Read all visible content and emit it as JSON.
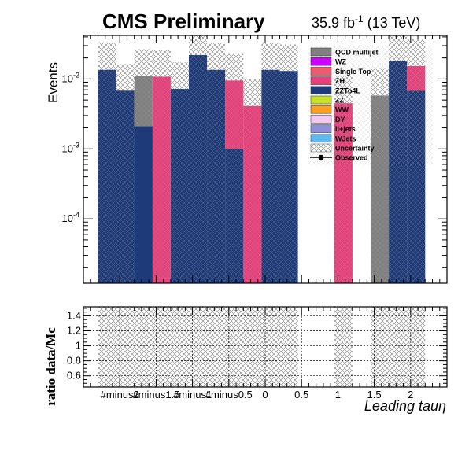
{
  "header": {
    "title": "CMS Preliminary",
    "lumi_value": "35.9 fb",
    "lumi_exp": "-1",
    "lumi_energy": " (13 TeV)"
  },
  "chart_data": [
    {
      "type": "bar",
      "stacked": true,
      "ylabel": "Events",
      "yscale": "log",
      "ylim": [
        1.2e-05,
        0.042
      ],
      "y_tick_labels": [
        {
          "base": "10",
          "exp": "-2",
          "value": 0.01
        },
        {
          "base": "10",
          "exp": "-3",
          "value": 0.001
        },
        {
          "base": "10",
          "exp": "-4",
          "value": 0.0001
        }
      ],
      "x_bin_edges": [
        -2.3,
        -2.05,
        -1.8,
        -1.55,
        -1.3,
        -1.05,
        -0.8,
        -0.55,
        -0.3,
        -0.05,
        0.2,
        0.45,
        0.7,
        0.95,
        1.2,
        1.45,
        1.7,
        1.95,
        2.2
      ],
      "colors": {
        "QCD multijet": "#808080",
        "WZ": "#cc00ff",
        "Single Top": "#f05a6e",
        "ZH": "#e8407a",
        "ZZTo4L": "#1e3a78",
        "ZZ": "#c8e02a",
        "WW": "#ffa020",
        "DY": "#f4c8f0",
        "ll+jets": "#9090d8",
        "WJets": "#60b8f0",
        "Uncertainty": "#606060",
        "Observed": "#000000"
      },
      "series": [
        {
          "name": "ZZTo4L",
          "values": [
            0.0135,
            0.0068,
            0.0021,
            0.0,
            0.0072,
            0.022,
            0.0135,
            0.001,
            0.0,
            0.0135,
            0.013,
            0.0,
            0.0,
            0.0,
            0.0,
            0.0,
            0.018,
            0.0068
          ]
        },
        {
          "name": "ZH",
          "values": [
            0.0,
            0.0,
            0.0,
            0.0108,
            0.0,
            0.0,
            0.0,
            0.0085,
            0.0041,
            0.0,
            0.0,
            0.0,
            0.0,
            0.0045,
            0.0,
            0.0,
            0.0,
            0.0085
          ]
        },
        {
          "name": "QCD multijet",
          "values": [
            0.0,
            0.0,
            0.009,
            0.0,
            0.0,
            0.0,
            0.0,
            0.0,
            0.0,
            0.0,
            0.0,
            0.0,
            0.0,
            0.0,
            0.0,
            0.0058,
            0.0,
            0.0
          ]
        },
        {
          "name": "WZ",
          "values": [
            0,
            0,
            0,
            0,
            0,
            0,
            0,
            0,
            0,
            0,
            0,
            0,
            0,
            0,
            0,
            0,
            0,
            0
          ]
        },
        {
          "name": "Single Top",
          "values": [
            0,
            0,
            0,
            0,
            0,
            0,
            0,
            0,
            0,
            0,
            0,
            0,
            0,
            0,
            0,
            0,
            0,
            0
          ]
        },
        {
          "name": "ZZ",
          "values": [
            0,
            0,
            0,
            0,
            0,
            0,
            0,
            0,
            0,
            0,
            0,
            0,
            0,
            0,
            0,
            0,
            0,
            0
          ]
        },
        {
          "name": "WW",
          "values": [
            0,
            0,
            0,
            0,
            0,
            0,
            0,
            0,
            0,
            0,
            0,
            0,
            0,
            0,
            0,
            0,
            0,
            0
          ]
        },
        {
          "name": "DY",
          "values": [
            0,
            0,
            0,
            0,
            0,
            0,
            0,
            0,
            0,
            0,
            0,
            0,
            0,
            0,
            0,
            0,
            0,
            0
          ]
        },
        {
          "name": "ll+jets",
          "values": [
            0,
            0,
            0,
            0,
            0,
            0,
            0,
            0,
            0,
            0,
            0,
            0,
            0,
            0,
            0,
            0,
            0,
            0
          ]
        },
        {
          "name": "WJets",
          "values": [
            0,
            0,
            0,
            0,
            0,
            0,
            0,
            0,
            0,
            0,
            0,
            0,
            0,
            0,
            0,
            0,
            0,
            0
          ]
        }
      ],
      "legend": [
        "QCD multijet",
        "WZ",
        "Single Top",
        "ZH",
        "ZZTo4L",
        "ZZ",
        "WW",
        "DY",
        "ll+jets",
        "WJets",
        "Uncertainty",
        "Observed"
      ],
      "legend_position": "top-right"
    },
    {
      "type": "ratio",
      "ylabel": "ratio data/Mc",
      "ylim": [
        0.45,
        1.52
      ],
      "yticks": [
        "1.4",
        "1.2",
        "1",
        "0.8",
        "0.6"
      ],
      "ytick_values": [
        1.4,
        1.2,
        1.0,
        0.8,
        0.6
      ],
      "xlabel": "Leading   tauη",
      "xlim": [
        -2.5,
        2.5
      ],
      "xticks": [
        "#minus2",
        "#minus1.5",
        "#minus1",
        "#minus0.5",
        "0",
        "0.5",
        "1",
        "1.5",
        "2"
      ],
      "xtick_values": [
        -2.0,
        -1.5,
        -1.0,
        -0.5,
        0.0,
        0.5,
        1.0,
        1.5,
        2.0
      ],
      "grid": true,
      "uncertainty_band": [
        0.45,
        1.52
      ]
    }
  ]
}
